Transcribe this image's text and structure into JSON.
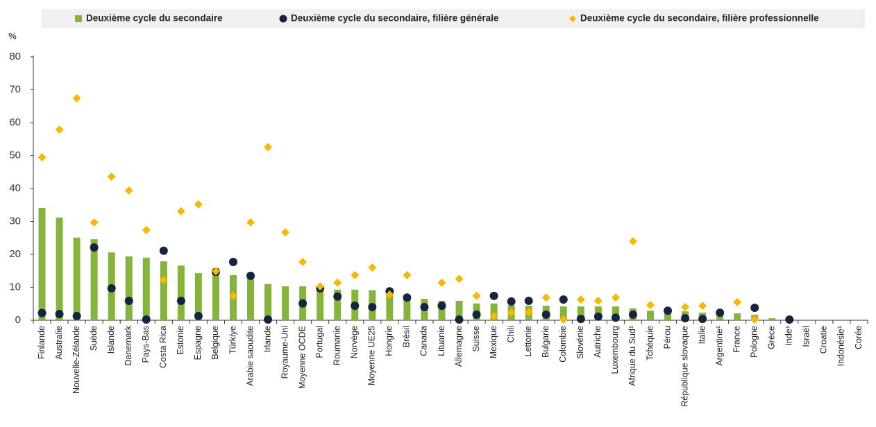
{
  "chart_data": {
    "type": "bar",
    "y_label": "%",
    "categories": [
      "Finlande",
      "Australie",
      "Nouvelle-Zélande",
      "Suède",
      "Islande",
      "Danemark",
      "Pays-Bas",
      "Costa Rica",
      "Estonie",
      "Espagne",
      "Belgique",
      "Türkiye",
      "Arabie saoudite",
      "Irlande",
      "Royaume-Uni",
      "Moyenne OCDE",
      "Portugal",
      "Roumanie",
      "Norvège",
      "Moyenne UE25",
      "Hongrie",
      "Brésil",
      "Canada",
      "Lituanie",
      "Allemagne",
      "Suisse",
      "Mexique",
      "Chili",
      "Lettonie",
      "Bulgarie",
      "Colombie",
      "Slovénie",
      "Autriche",
      "Luxembourg",
      "Afrique du Sud¹",
      "Tchéquie",
      "Pérou",
      "République slovaque",
      "Italie",
      "Argentine¹",
      "France",
      "Pologne",
      "Grèce",
      "Inde¹",
      "Israël",
      "Croatie",
      "Indonésie¹",
      "Corée"
    ],
    "series": [
      {
        "name": "Deuxième cycle du secondaire",
        "type": "bar",
        "color": "#86b43a",
        "values": [
          34.1,
          31.2,
          25.1,
          24.6,
          20.6,
          19.4,
          19,
          17.9,
          16.6,
          14.3,
          14.1,
          13.7,
          13.1,
          11,
          10.3,
          10.3,
          9.9,
          9.3,
          9.3,
          9.1,
          7.8,
          7.2,
          6.5,
          5.9,
          5.9,
          5.1,
          5.1,
          4.6,
          4.4,
          4.4,
          4.2,
          4.2,
          4.2,
          4.2,
          3.6,
          2.9,
          2.7,
          2.7,
          2.3,
          2.1,
          2.1,
          1.7,
          0.6,
          0.2,
          null,
          null,
          null,
          null
        ]
      },
      {
        "name": "Deuxième cycle du secondaire, filière générale",
        "type": "scatter",
        "marker": "circle",
        "color": "#16243f",
        "values": [
          2.2,
          1.9,
          1.3,
          22.1,
          9.7,
          5.9,
          0.2,
          21.1,
          5.9,
          1.3,
          14.7,
          17.7,
          13.5,
          0.2,
          null,
          5.1,
          9.7,
          7.2,
          4.4,
          4,
          8.8,
          6.9,
          4,
          4.4,
          0.2,
          1.7,
          7.4,
          5.7,
          5.9,
          1.7,
          6.3,
          0.4,
          1.1,
          0.8,
          1.7,
          null,
          2.9,
          0.6,
          0.4,
          2.3,
          null,
          3.8,
          null,
          0.2,
          null,
          null,
          null,
          null
        ]
      },
      {
        "name": "Deuxième cycle du secondaire, filière professionnelle",
        "type": "scatter",
        "marker": "diamond",
        "color": "#f6b800",
        "values": [
          49.5,
          57.9,
          67.4,
          29.7,
          43.6,
          39.4,
          27.4,
          12.2,
          33.1,
          35.2,
          14.9,
          7.4,
          29.7,
          52.6,
          26.7,
          17.7,
          10.3,
          11.4,
          13.7,
          16,
          7.8,
          13.7,
          null,
          11.4,
          12.6,
          7.4,
          1.3,
          2.3,
          2.5,
          6.9,
          0.2,
          6.3,
          5.9,
          6.9,
          24,
          4.6,
          null,
          4,
          4.4,
          null,
          5.5,
          0.2,
          null,
          null,
          null,
          null,
          null,
          null
        ]
      }
    ],
    "ylim": [
      0,
      80
    ],
    "yticks": [
      0,
      10,
      20,
      30,
      40,
      50,
      60,
      70,
      80
    ],
    "grid": false
  }
}
